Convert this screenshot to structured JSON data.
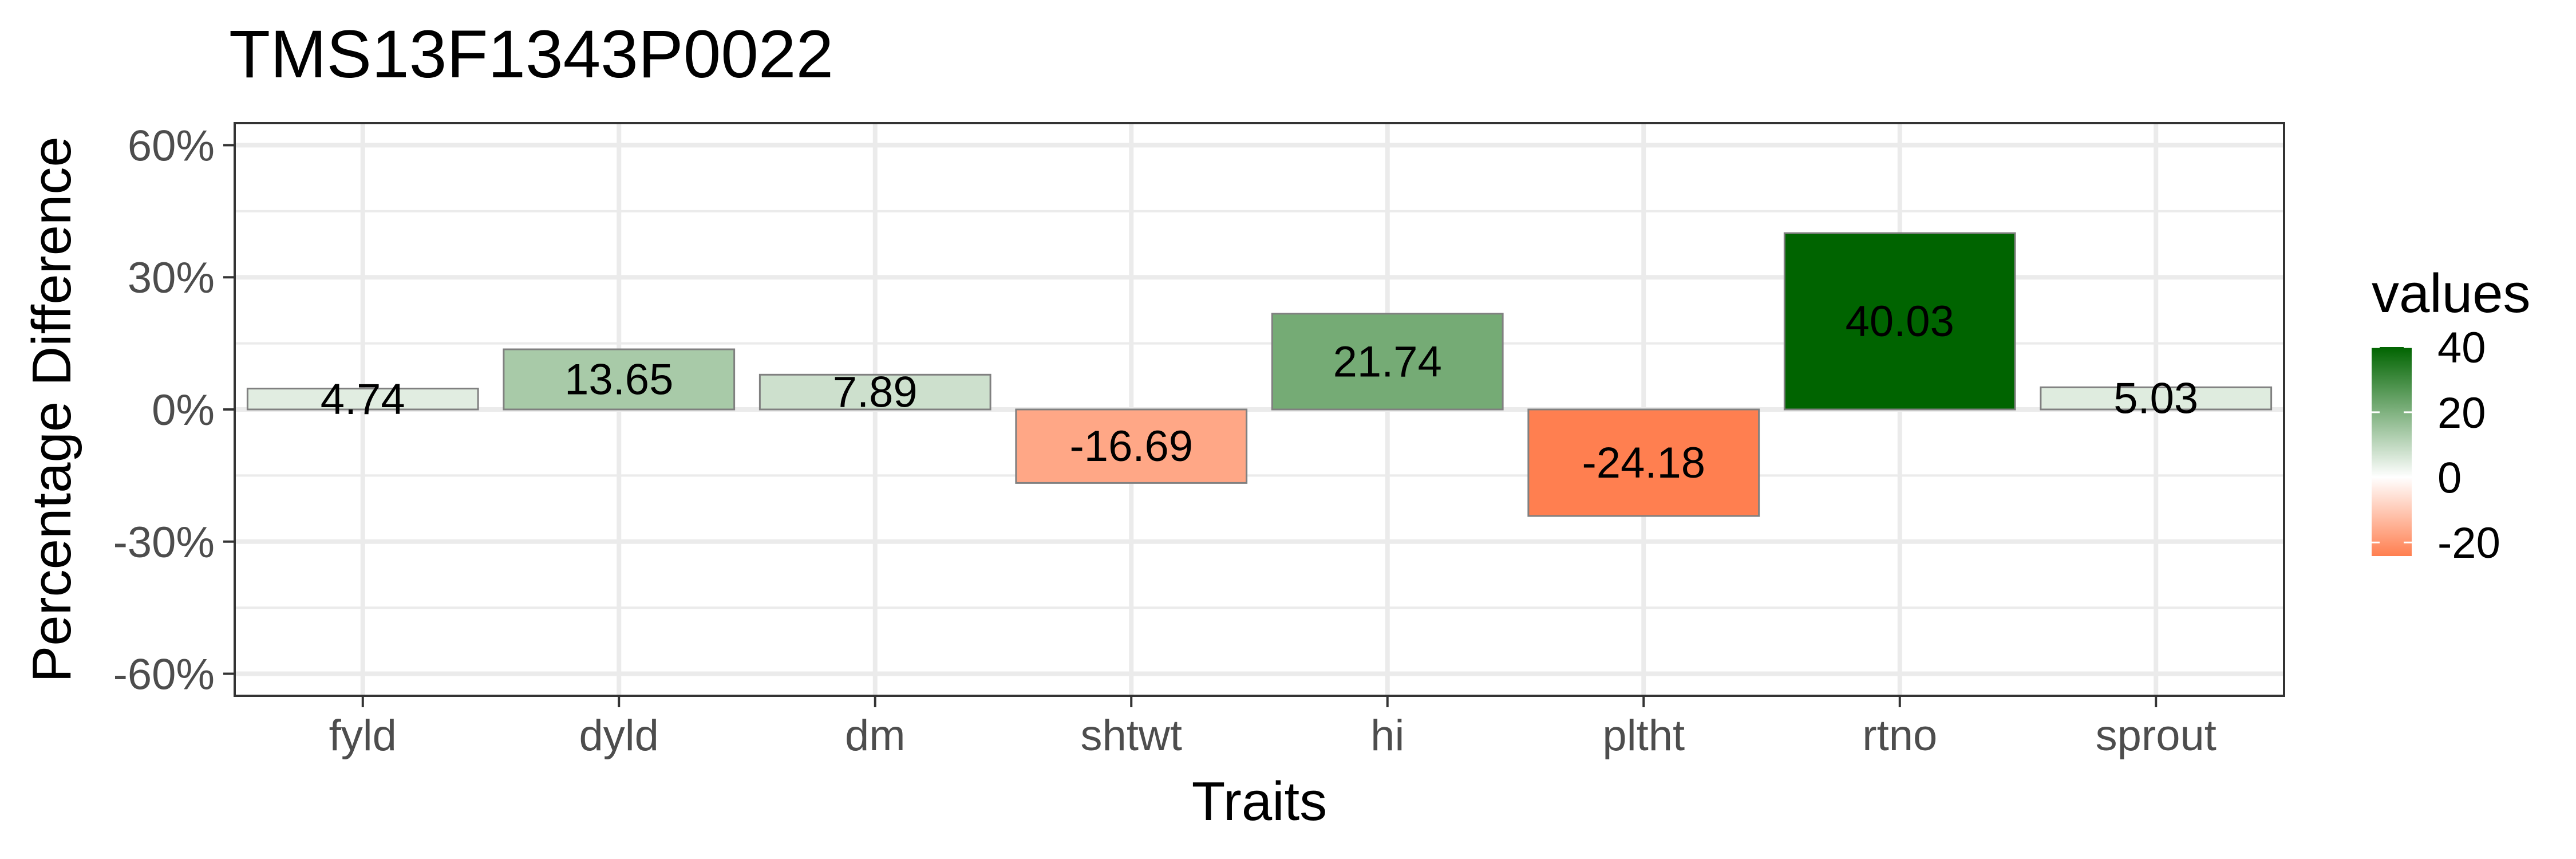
{
  "chart_data": {
    "type": "bar",
    "title": "TMS13F1343P0022",
    "xlabel": "Traits",
    "ylabel": "Percentage Difference",
    "categories": [
      "fyld",
      "dyld",
      "dm",
      "shtwt",
      "hi",
      "pltht",
      "rtno",
      "sprout"
    ],
    "values": [
      4.74,
      13.65,
      7.89,
      -16.69,
      21.74,
      -24.18,
      40.03,
      5.03
    ],
    "value_labels": [
      "4.74",
      "13.65",
      "7.89",
      "-16.69",
      "21.74",
      "-24.18",
      "40.03",
      "5.03"
    ],
    "ylim": [
      -65,
      65
    ],
    "y_ticks": [
      -60,
      -30,
      0,
      30,
      60
    ],
    "y_tick_labels": [
      "-60%",
      "-30%",
      "0%",
      "30%",
      "60%"
    ],
    "grid": true,
    "legend": {
      "title": "values",
      "position": "right",
      "ticks": [
        40,
        20,
        0,
        -20
      ],
      "tick_labels": [
        "40",
        "20",
        "0",
        "-20"
      ],
      "range": [
        -24.18,
        40.03
      ],
      "colors": {
        "high": "#006400",
        "mid": "#ffffff",
        "low": "#ff7f50"
      }
    },
    "colors": {
      "bar_outline": "#808080",
      "panel_border": "#333333",
      "grid": "#ebebeb"
    }
  }
}
